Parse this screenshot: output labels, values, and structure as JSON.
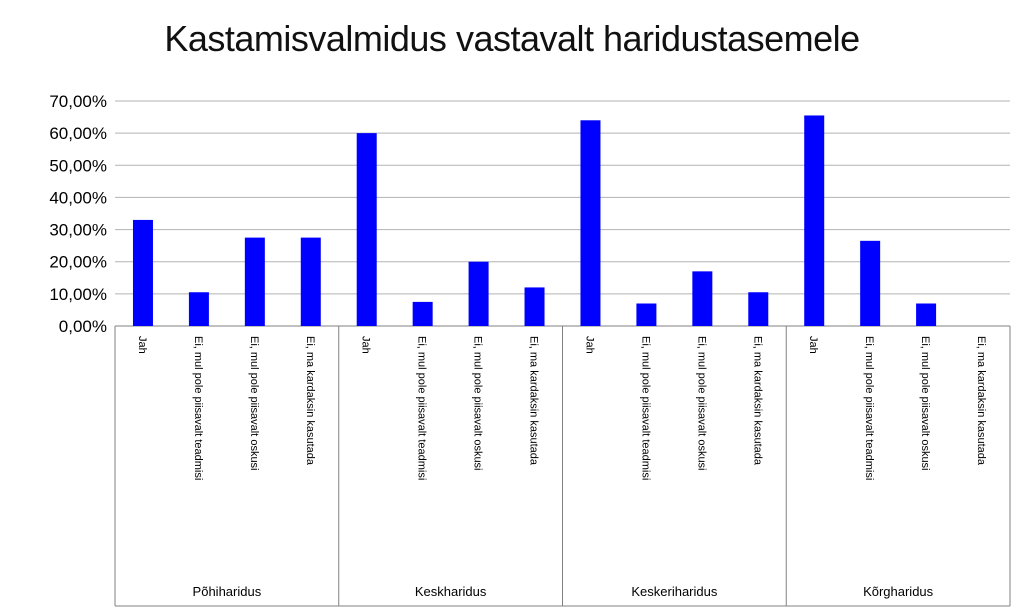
{
  "chart_data": {
    "type": "bar",
    "title": "Kastamisvalmidus vastavalt haridustasemele",
    "xlabel": "",
    "ylabel": "",
    "ylim": [
      0,
      0.7
    ],
    "y_ticks": [
      "0,00%",
      "10,00%",
      "20,00%",
      "30,00%",
      "40,00%",
      "50,00%",
      "60,00%",
      "70,00%"
    ],
    "grid": true,
    "legend": "none",
    "bar_color": "#0000FF",
    "groups": [
      {
        "name": "Põhiharidus",
        "categories": [
          "Jah",
          "Ei, mul pole piisavalt teadmisi",
          "Ei, mul pole piisavalt oskusi",
          "Ei, ma kardaksin kasutada"
        ],
        "values": [
          0.33,
          0.105,
          0.275,
          0.275
        ]
      },
      {
        "name": "Keskharidus",
        "categories": [
          "Jah",
          "Ei, mul pole piisavalt teadmisi",
          "Ei, mul pole piisavalt oskusi",
          "Ei, ma kardaksin kasutada"
        ],
        "values": [
          0.6,
          0.075,
          0.2,
          0.12
        ]
      },
      {
        "name": "Keskeriharidus",
        "categories": [
          "Jah",
          "Ei, mul pole piisavalt teadmisi",
          "Ei, mul pole piisavalt oskusi",
          "Ei, ma kardaksin kasutada"
        ],
        "values": [
          0.64,
          0.07,
          0.17,
          0.105
        ]
      },
      {
        "name": "Kõrgharidus",
        "categories": [
          "Jah",
          "Ei, mul pole piisavalt teadmisi",
          "Ei, mul pole piisavalt oskusi",
          "Ei, ma kardaksin kasutada"
        ],
        "values": [
          0.655,
          0.265,
          0.07,
          0.0
        ]
      }
    ]
  }
}
